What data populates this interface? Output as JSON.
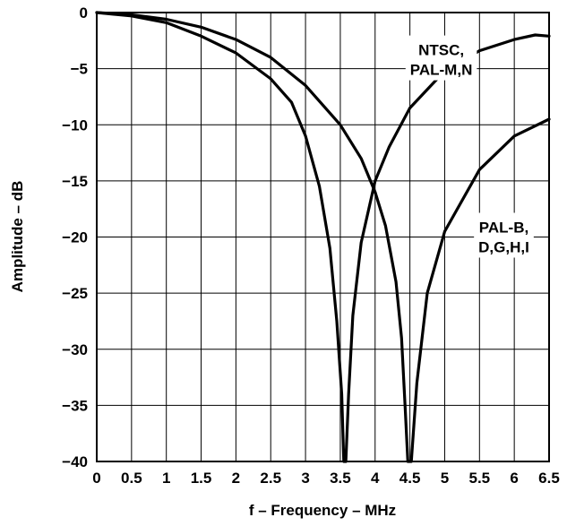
{
  "chart_data": {
    "type": "line",
    "title": "",
    "xlabel": "f – Frequency – MHz",
    "ylabel": "Amplitude – dB",
    "xlim": [
      0,
      6.5
    ],
    "ylim": [
      -40,
      0
    ],
    "xticks": [
      0,
      0.5,
      1,
      1.5,
      2,
      2.5,
      3,
      3.5,
      4,
      4.5,
      5,
      5.5,
      6,
      6.5
    ],
    "xtick_labels": [
      "0",
      "0.5",
      "1",
      "1.5",
      "2",
      "2.5",
      "3",
      "3.5",
      "4",
      "4.5",
      "5",
      "5.5",
      "6",
      "6.5"
    ],
    "yticks": [
      0,
      -5,
      -10,
      -15,
      -20,
      -25,
      -30,
      -35,
      -40
    ],
    "ytick_labels": [
      "0",
      "−5",
      "−10",
      "−15",
      "−20",
      "−25",
      "−30",
      "−35",
      "−40"
    ],
    "grid": true,
    "legend": "none",
    "annotations": [
      {
        "lines": [
          "NTSC,",
          "PAL-M,N"
        ],
        "x": 4.95,
        "y": -4.2
      },
      {
        "lines": [
          "PAL-B,",
          "D,G,H,I"
        ],
        "x": 5.85,
        "y": -20.0
      }
    ],
    "series": [
      {
        "x": [
          0,
          0.5,
          1,
          1.5,
          2,
          2.5,
          2.8,
          3,
          3.2,
          3.35,
          3.45,
          3.52,
          3.55,
          3.58,
          3.62,
          3.68,
          3.8,
          4,
          4.2,
          4.5,
          5,
          5.5,
          6,
          6.3,
          6.5
        ],
        "y": [
          0,
          -0.3,
          -0.9,
          -2.1,
          -3.6,
          -5.9,
          -8.0,
          -11.0,
          -15.5,
          -21.0,
          -27.5,
          -34.0,
          -40.0,
          -40.0,
          -34.0,
          -27.0,
          -20.5,
          -15.0,
          -12.0,
          -8.5,
          -5.2,
          -3.4,
          -2.4,
          -2.0,
          -2.1
        ]
      },
      {
        "x": [
          0,
          0.5,
          1,
          1.5,
          2,
          2.5,
          3,
          3.5,
          3.8,
          4,
          4.15,
          4.3,
          4.38,
          4.43,
          4.47,
          4.52,
          4.6,
          4.75,
          5,
          5.5,
          6,
          6.5
        ],
        "y": [
          0,
          -0.2,
          -0.6,
          -1.3,
          -2.4,
          -4.0,
          -6.5,
          -10.0,
          -13.0,
          -16.0,
          -19.0,
          -24.0,
          -29.0,
          -35.0,
          -40.0,
          -40.0,
          -33.0,
          -25.0,
          -19.5,
          -14.0,
          -11.0,
          -9.5
        ]
      }
    ]
  }
}
